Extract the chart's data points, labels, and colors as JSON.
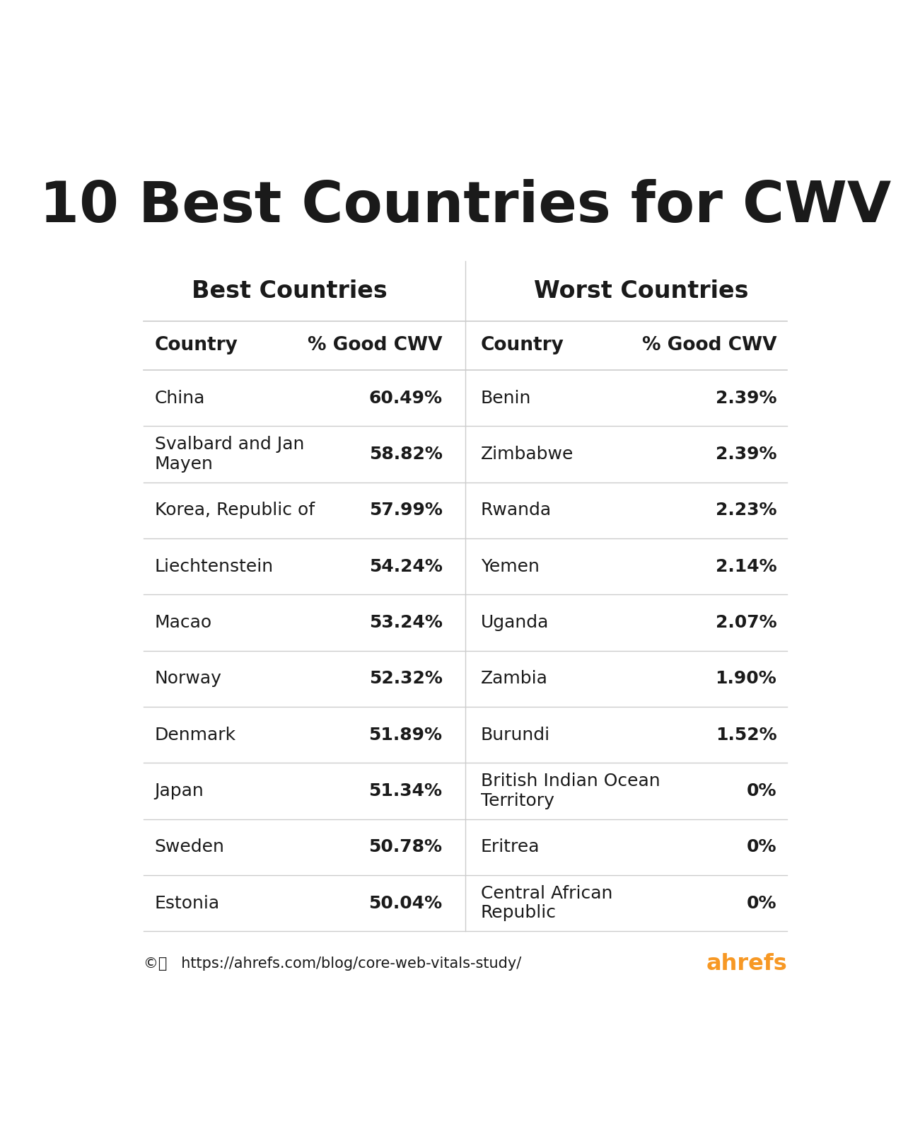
{
  "title": "10 Best Countries for CWV",
  "title_fontsize": 58,
  "title_fontweight": "bold",
  "background_color": "#ffffff",
  "text_color": "#1a1a1a",
  "line_color": "#cccccc",
  "section_header_left": "Best Countries",
  "section_header_right": "Worst Countries",
  "col_headers": [
    "Country",
    "% Good CWV",
    "Country",
    "% Good CWV"
  ],
  "best_countries": [
    [
      "China",
      "60.49%"
    ],
    [
      "Svalbard and Jan\nMayen",
      "58.82%"
    ],
    [
      "Korea, Republic of",
      "57.99%"
    ],
    [
      "Liechtenstein",
      "54.24%"
    ],
    [
      "Macao",
      "53.24%"
    ],
    [
      "Norway",
      "52.32%"
    ],
    [
      "Denmark",
      "51.89%"
    ],
    [
      "Japan",
      "51.34%"
    ],
    [
      "Sweden",
      "50.78%"
    ],
    [
      "Estonia",
      "50.04%"
    ]
  ],
  "worst_countries": [
    [
      "Benin",
      "2.39%"
    ],
    [
      "Zimbabwe",
      "2.39%"
    ],
    [
      "Rwanda",
      "2.23%"
    ],
    [
      "Yemen",
      "2.14%"
    ],
    [
      "Uganda",
      "2.07%"
    ],
    [
      "Zambia",
      "1.90%"
    ],
    [
      "Burundi",
      "1.52%"
    ],
    [
      "British Indian Ocean\nTerritory",
      "0%"
    ],
    [
      "Eritrea",
      "0%"
    ],
    [
      "Central African\nRepublic",
      "0%"
    ]
  ],
  "footer_url": "  https://ahrefs.com/blog/core-web-vitals-study/",
  "footer_brand": "ahrefs",
  "footer_brand_color": "#f79824",
  "footer_brand_color2": "#3970e4",
  "value_fontweight": "bold",
  "value_fontsize": 18,
  "country_fontsize": 18,
  "header_fontsize": 19,
  "section_fontsize": 24,
  "footer_fontsize": 15
}
